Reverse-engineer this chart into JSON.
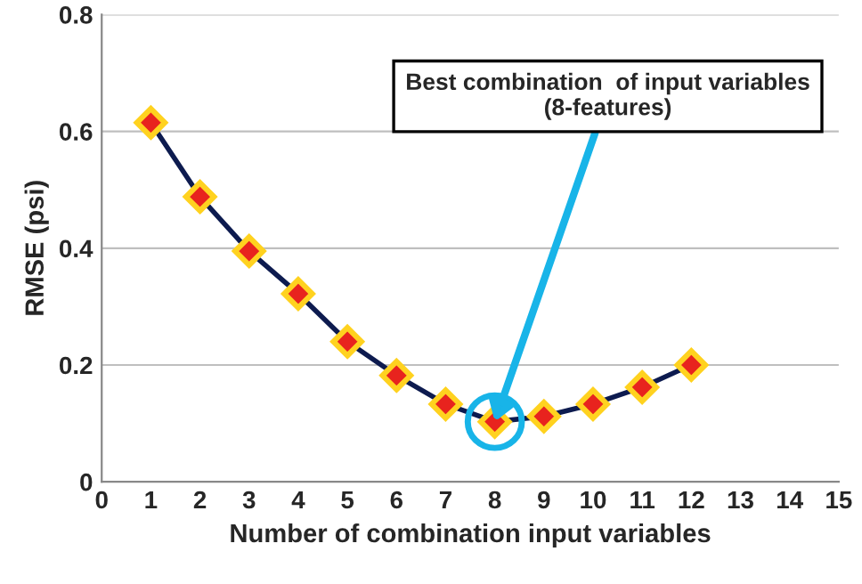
{
  "chart_data": {
    "type": "line",
    "xlabel": "Number of combination input variables",
    "ylabel": "RMSE (psi)",
    "x": [
      1,
      2,
      3,
      4,
      5,
      6,
      7,
      8,
      9,
      10,
      11,
      12
    ],
    "series": [
      {
        "color": "#0d1b4f",
        "values": [
          0.615,
          0.488,
          0.395,
          0.322,
          0.24,
          0.182,
          0.133,
          0.103,
          0.112,
          0.133,
          0.162,
          0.2
        ]
      }
    ],
    "xlim": [
      0,
      15
    ],
    "xticks": [
      0,
      1,
      2,
      3,
      4,
      5,
      6,
      7,
      8,
      9,
      10,
      11,
      12,
      13,
      14,
      15
    ],
    "ylim": [
      0,
      0.8
    ],
    "yticks": [
      0,
      0.2,
      0.4,
      0.6,
      0.8
    ],
    "grid": "y",
    "marker": "diamond",
    "line_style": "solid",
    "annotations": [
      {
        "text": "Best combination  of input variables\n(8-features)",
        "x": 8,
        "y": 0.103
      }
    ]
  }
}
